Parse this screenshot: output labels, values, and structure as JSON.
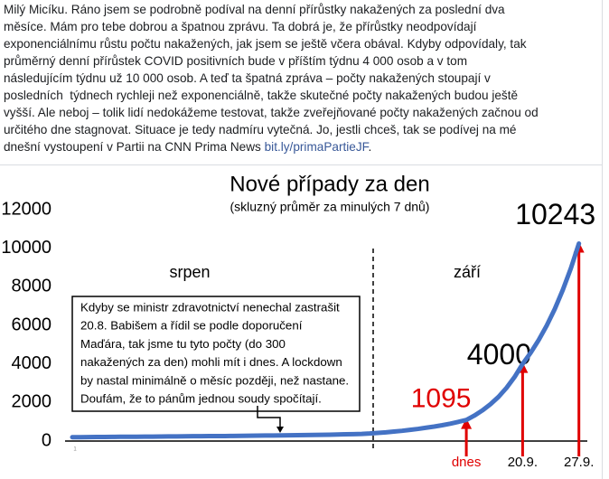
{
  "post": {
    "lines": [
      "Milý Micíku. Ráno jsem se podrobně podíval na denní přírůstky nakažených za poslední dva",
      "měsíce. Mám pro tebe dobrou a špatnou zprávu. Ta dobrá je, že přírůstky neodpovídají",
      "exponenciálnímu růstu počtu nakažených, jak jsem se ještě včera obával. Kdyby odpovídaly, tak",
      "průměrný denní přírůstek COVID positivních bude v příštím týdnu 4 000 osob a v tom",
      "následujícím týdnu už 10 000 osob. A teď ta špatná zpráva – počty nakažených stoupají v",
      "posledních  týdnech rychleji než exponenciálně, takže skutečné počty nakažených budou ještě",
      "vyšší. Ale neboj – tolik lidí nedokážeme testovat, takže zveřejňované počty nakažených začnou od",
      "určitého dne stagnovat. Situace je tedy nadmíru vytečná. Jo, jestli chceš, tak se podívej na mé"
    ],
    "last_line": {
      "text": "dnešní vystoupení v Partii na CNN Prima News",
      "link": "bit.ly/primaPartieJF",
      "end": "."
    }
  },
  "chart_data": {
    "type": "line",
    "title": "Nové případy za den",
    "subtitle": "(skluzný průměr za minulých 7 dnů)",
    "color": "#4472c4",
    "ylim": [
      0,
      12000
    ],
    "yticks": [
      0,
      2000,
      4000,
      6000,
      8000,
      10000,
      12000
    ],
    "categories": [
      "1",
      null,
      null,
      null,
      null,
      null,
      null,
      null,
      null,
      null,
      null,
      null,
      null,
      null,
      null,
      null,
      null,
      null,
      null,
      null,
      null,
      null,
      null,
      null,
      null,
      null,
      null,
      null,
      null,
      null,
      null,
      null,
      null,
      null,
      null,
      null,
      null,
      null,
      null,
      null,
      null,
      null,
      null,
      null,
      null,
      null,
      null,
      null,
      null,
      "dnes",
      null,
      null,
      null,
      null,
      null,
      null,
      "20.9.",
      null,
      null,
      null,
      null,
      null,
      null,
      "27.9."
    ],
    "values": [
      200,
      200,
      205,
      210,
      210,
      215,
      220,
      220,
      225,
      230,
      230,
      235,
      240,
      240,
      245,
      250,
      250,
      255,
      260,
      260,
      265,
      270,
      275,
      280,
      285,
      290,
      295,
      300,
      305,
      310,
      315,
      320,
      330,
      340,
      350,
      360,
      370,
      390,
      420,
      450,
      490,
      530,
      580,
      630,
      690,
      750,
      820,
      900,
      995,
      1095,
      1320,
      1590,
      1910,
      2290,
      2760,
      3320,
      4000,
      4580,
      5240,
      5990,
      6850,
      7840,
      8960,
      10243
    ],
    "labeled_points": [
      49,
      56,
      63
    ],
    "regions": [
      "srpen",
      "září"
    ],
    "annotation": [
      "Kdyby se ministr zdravotnictví nenechal zastrašit",
      "20.8. Babišem a řídil se podle doporučení",
      "Maďára, tak jsme tu tyto počty (do 300",
      "nakažených za den) mohli mít i dnes. A lockdown",
      "by nastal minimálně o měsíc později, než nastane.",
      "Doufám, že to pánům jednou soudy spočítají."
    ]
  }
}
